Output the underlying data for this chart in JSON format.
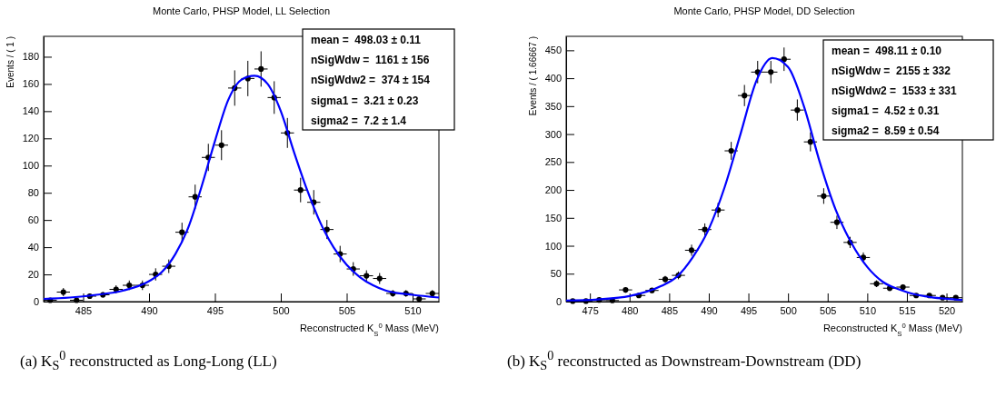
{
  "chart_data": [
    {
      "type": "scatter",
      "title": "Monte Carlo, PHSP Model, LL Selection",
      "xlabel": "Reconstructed K$_{S}$$^{0}$ Mass (MeV)",
      "ylabel": "Events / ( 1 )",
      "annotations": [
        "mean =  498.03 ± 0.11",
        "nSigWdw =  1161 ± 156",
        "nSigWdw2 =  374 ± 154",
        "sigma1 =  3.21 ± 0.23",
        "sigma2 =  7.2 ± 1.4",
        "(a) K$_{S}$$^{0}$ reconstructed as Long-Long (LL)"
      ],
      "xlim": [
        482,
        512
      ],
      "xticks": [
        485,
        490,
        495,
        500,
        505,
        510
      ],
      "ylim": [
        0,
        195
      ],
      "yticks": [
        0,
        20,
        40,
        60,
        80,
        100,
        120,
        140,
        160,
        180
      ],
      "grid": false,
      "series": [
        {
          "color": "#000000",
          "marker": "circle",
          "x": [
            482.5,
            483.5,
            484.5,
            485.5,
            486.5,
            487.5,
            488.5,
            489.5,
            490.5,
            491.5,
            492.5,
            493.5,
            494.5,
            495.5,
            496.5,
            497.5,
            498.5,
            499.5,
            500.5,
            501.5,
            502.5,
            503.5,
            504.5,
            505.5,
            506.5,
            507.5,
            508.5,
            509.5,
            510.5,
            511.5
          ],
          "values": [
            1,
            7,
            1,
            4,
            5,
            9,
            12,
            12,
            20,
            26,
            51,
            77,
            106,
            115,
            157,
            164,
            171,
            150,
            124,
            82,
            73,
            53,
            35,
            24,
            19,
            17,
            6,
            6,
            2,
            6
          ],
          "errors": [
            1,
            3,
            1,
            2,
            2,
            3,
            3.5,
            3.5,
            4.5,
            5,
            7,
            9,
            10,
            11,
            13,
            13,
            13,
            12,
            11,
            9,
            9,
            7,
            6,
            5,
            4,
            4,
            2.5,
            2.5,
            1.5,
            2.5
          ],
          "xerrors": [
            0.5,
            0.5,
            0.5,
            0.5,
            0.5,
            0.5,
            0.5,
            0.5,
            0.5,
            0.5,
            0.5,
            0.5,
            0.5,
            0.5,
            0.5,
            0.5,
            0.5,
            0.5,
            0.5,
            0.5,
            0.5,
            0.5,
            0.5,
            0.5,
            0.5,
            0.5,
            0.5,
            0.5,
            0.5,
            0.5
          ]
        },
        {
          "type": "line",
          "color": "#0000ff",
          "marker": "none",
          "line_style": "solid",
          "x": [
            482,
            484,
            486,
            488,
            490,
            491,
            492,
            493,
            494,
            495,
            496,
            497,
            498,
            499,
            500,
            501,
            502,
            503,
            504,
            505,
            506,
            507,
            508,
            510,
            512
          ],
          "values": [
            2,
            3,
            5,
            8,
            15,
            22,
            35,
            55,
            85,
            118,
            148,
            163,
            166,
            160,
            140,
            110,
            82,
            58,
            40,
            27,
            18,
            12,
            8,
            5,
            3
          ]
        }
      ]
    },
    {
      "type": "scatter",
      "title": "Monte Carlo, PHSP Model, DD Selection",
      "xlabel": "Reconstructed K$_{S}$$^{0}$ Mass (MeV)",
      "ylabel": "Events / ( 1.66667 )",
      "annotations": [
        "mean =  498.11 ± 0.10",
        "nSigWdw =  2155 ± 332",
        "nSigWdw2 =  1533 ± 331",
        "sigma1 =  4.52 ± 0.31",
        "sigma2 =  8.59 ± 0.54",
        "(b) K$_{S}$$^{0}$ reconstructed as Downstream-Downstream (DD)"
      ],
      "xlim": [
        472,
        522
      ],
      "xticks": [
        475,
        480,
        485,
        490,
        495,
        500,
        505,
        510,
        515,
        520
      ],
      "ylim": [
        0,
        475
      ],
      "yticks": [
        0,
        50,
        100,
        150,
        200,
        250,
        300,
        350,
        400,
        450
      ],
      "grid": false,
      "series": [
        {
          "color": "#000000",
          "marker": "circle",
          "x": [
            472.83,
            474.5,
            476.17,
            477.83,
            479.5,
            481.17,
            482.83,
            484.5,
            486.17,
            487.83,
            489.5,
            491.17,
            492.83,
            494.5,
            496.17,
            497.83,
            499.5,
            501.17,
            502.83,
            504.5,
            506.17,
            507.83,
            509.5,
            511.17,
            512.83,
            514.5,
            516.17,
            517.83,
            519.5,
            521.17
          ],
          "values": [
            1,
            1,
            3,
            2,
            21,
            11,
            20,
            40,
            47,
            92,
            129,
            164,
            270,
            369,
            411,
            411,
            434,
            343,
            286,
            189,
            142,
            106,
            79,
            32,
            24,
            26,
            11,
            11,
            7,
            7
          ],
          "errors": [
            1,
            1,
            2,
            1.5,
            5,
            3,
            4,
            6,
            7,
            10,
            11,
            13,
            16,
            19,
            20,
            20,
            21,
            19,
            17,
            14,
            12,
            10,
            9,
            6,
            5,
            5,
            3,
            3,
            3,
            3
          ],
          "xerrors": [
            0.83,
            0.83,
            0.83,
            0.83,
            0.83,
            0.83,
            0.83,
            0.83,
            0.83,
            0.83,
            0.83,
            0.83,
            0.83,
            0.83,
            0.83,
            0.83,
            0.83,
            0.83,
            0.83,
            0.83,
            0.83,
            0.83,
            0.83,
            0.83,
            0.83,
            0.83,
            0.83,
            0.83,
            0.83,
            0.83
          ]
        },
        {
          "type": "line",
          "color": "#0000ff",
          "marker": "none",
          "line_style": "solid",
          "x": [
            472,
            476,
            480,
            484,
            486,
            488,
            490,
            492,
            494,
            496,
            498,
            500,
            502,
            504,
            506,
            508,
            510,
            512,
            514,
            516,
            518,
            520,
            522
          ],
          "values": [
            2,
            4,
            10,
            28,
            45,
            80,
            130,
            205,
            300,
            395,
            436,
            420,
            350,
            250,
            165,
            105,
            62,
            35,
            22,
            13,
            8,
            5,
            3
          ]
        }
      ]
    }
  ]
}
